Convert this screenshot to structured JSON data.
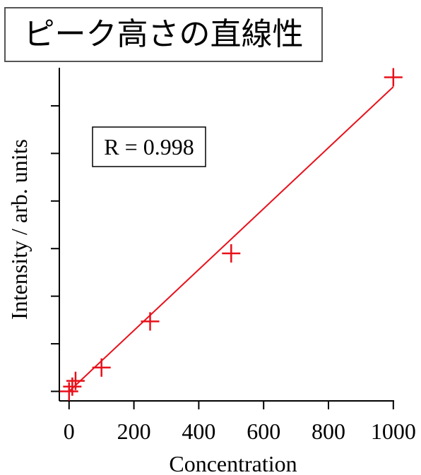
{
  "page": {
    "title": "ピーク高さの直線性"
  },
  "chart_data": {
    "type": "scatter",
    "title": "ピーク高さの直線性",
    "xlabel": "Concentration",
    "ylabel": "Intensity / arb. units",
    "xlim": [
      -30,
      1020
    ],
    "ylim": [
      -0.2,
      6.8
    ],
    "x_ticks": [
      0,
      200,
      400,
      600,
      800,
      1000
    ],
    "x_tick_labels": [
      "0",
      "200",
      "400",
      "600",
      "800",
      "1000"
    ],
    "y_ticks": [
      0,
      1,
      2,
      3,
      4,
      5,
      6
    ],
    "y_tick_labels_shown": false,
    "annotation": "R = 0.998",
    "grid": false,
    "series": [
      {
        "marker": "plus",
        "color": "#e8101a",
        "points": [
          {
            "x": 0,
            "y": 0.0
          },
          {
            "x": 10,
            "y": 0.1
          },
          {
            "x": 20,
            "y": 0.22
          },
          {
            "x": 100,
            "y": 0.5
          },
          {
            "x": 250,
            "y": 1.47
          },
          {
            "x": 500,
            "y": 2.9
          },
          {
            "x": 1000,
            "y": 6.6
          }
        ]
      }
    ],
    "fit_line": {
      "color": "#e8101a",
      "x": [
        0,
        1000
      ],
      "y": [
        0.0,
        6.4
      ]
    }
  }
}
